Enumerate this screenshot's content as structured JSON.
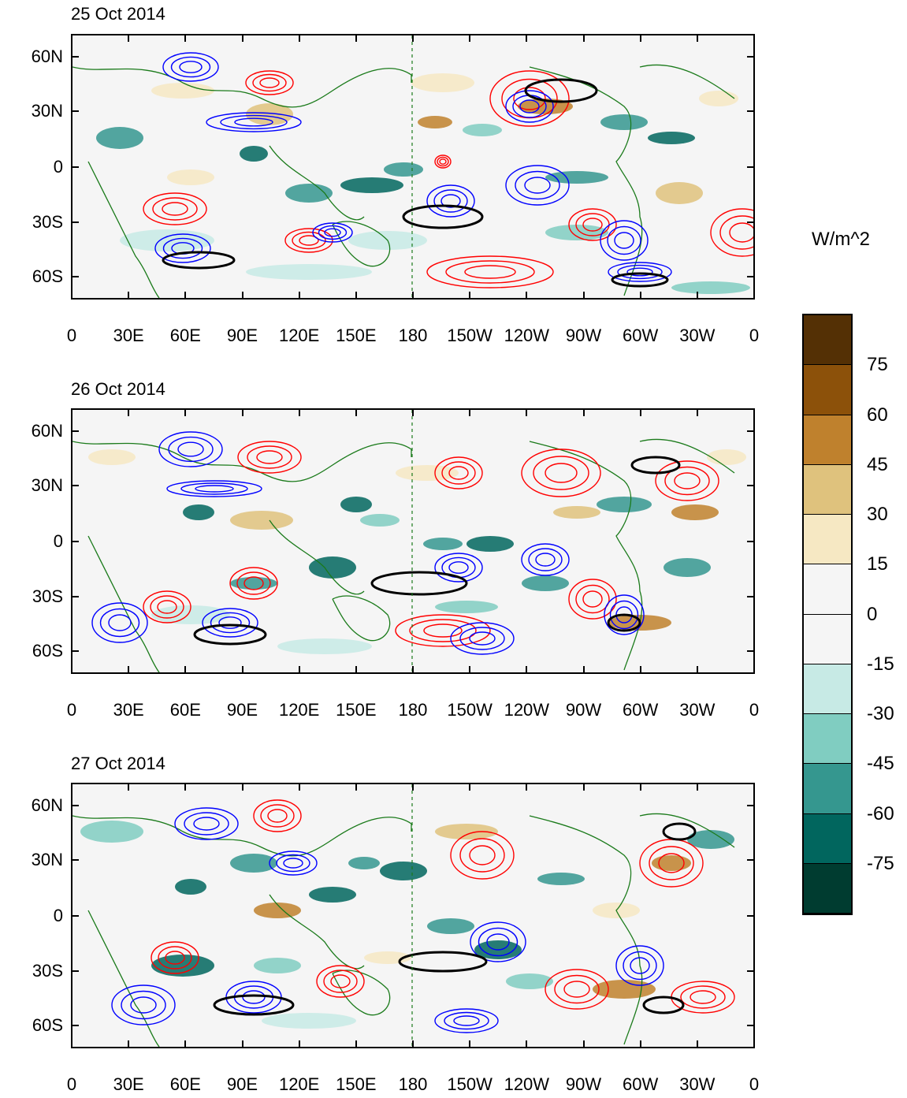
{
  "panels": [
    {
      "title": "25 Oct 2014"
    },
    {
      "title": "26 Oct 2014"
    },
    {
      "title": "27 Oct 2014"
    }
  ],
  "axes": {
    "lat_ticks": [
      "60N",
      "30N",
      "0",
      "30S",
      "60S"
    ],
    "lon_ticks": [
      "0",
      "30E",
      "60E",
      "90E",
      "120E",
      "150E",
      "180",
      "150W",
      "120W",
      "90W",
      "60W",
      "30W",
      "0"
    ]
  },
  "colorbar": {
    "title": "W/m^2",
    "labels": [
      "75",
      "60",
      "45",
      "30",
      "15",
      "0",
      "-15",
      "-30",
      "-45",
      "-60",
      "-75"
    ],
    "colors": [
      "#543005",
      "#8c510a",
      "#bf812d",
      "#dfc27d",
      "#f6e8c3",
      "#f5f5f5",
      "#f5f5f5",
      "#c7eae5",
      "#80cdc1",
      "#35978f",
      "#01665e",
      "#003c30"
    ]
  },
  "colors": {
    "positive_contour": "#ff0000",
    "negative_contour": "#0000ff",
    "highlight_contour": "#000000",
    "coastline": "#1a7a1a"
  }
}
